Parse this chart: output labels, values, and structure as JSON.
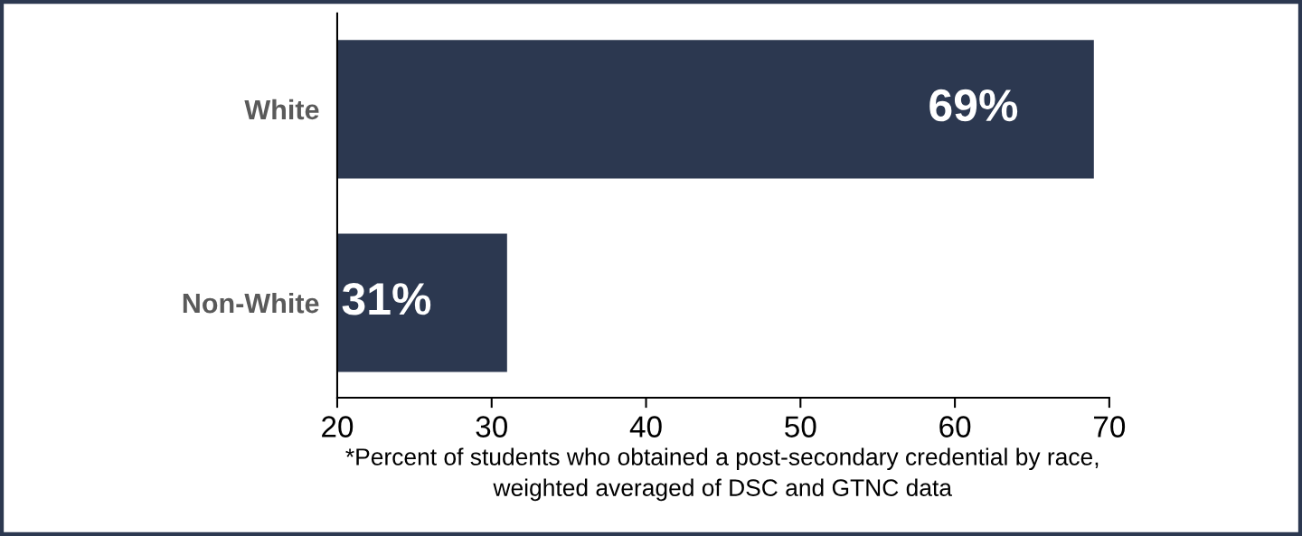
{
  "chart_data": {
    "type": "bar",
    "orientation": "horizontal",
    "categories": [
      "White",
      "Non-White"
    ],
    "values": [
      69,
      31
    ],
    "value_labels": [
      "69%",
      "31%"
    ],
    "color": "#2c3850",
    "xlim": [
      20,
      70
    ],
    "xticks": [
      20,
      30,
      40,
      50,
      60,
      70
    ],
    "grid": false,
    "legend": false,
    "annotations": [
      "*Percent of students who obtained a post-secondary credential by race,\nweighted averaged of DSC and GTNC data"
    ]
  }
}
